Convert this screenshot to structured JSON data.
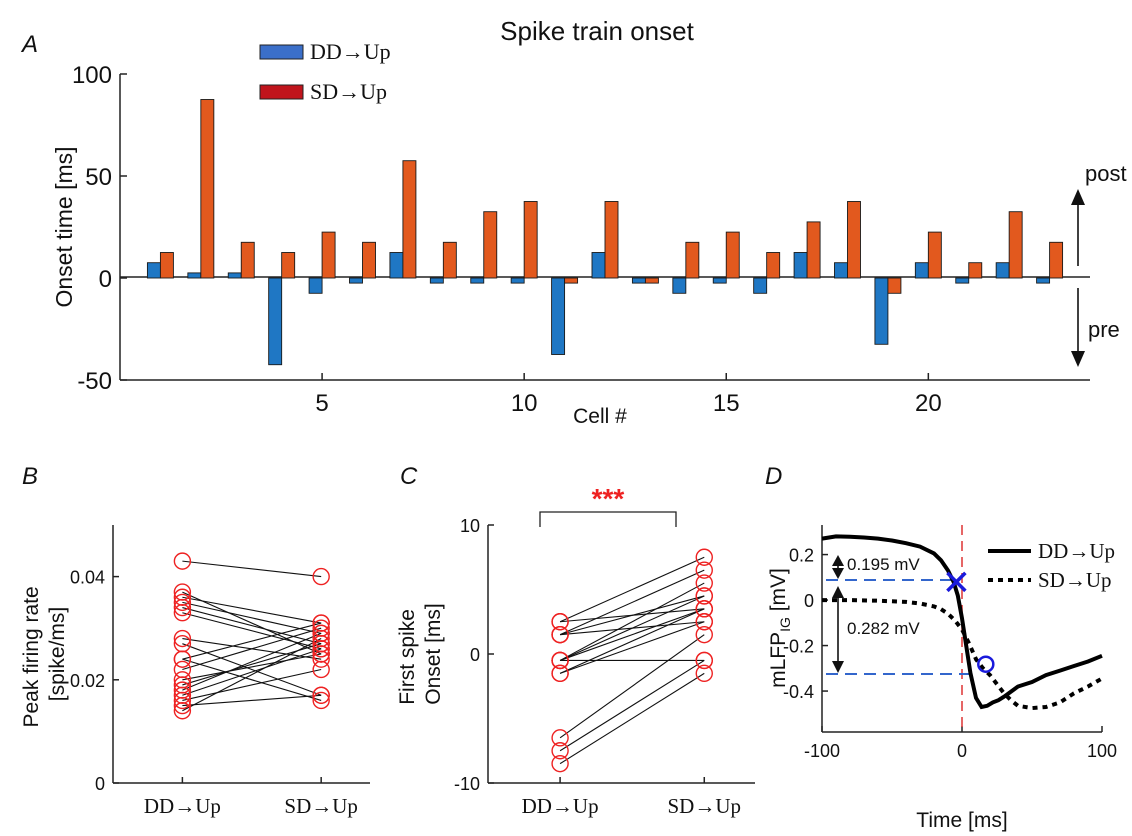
{
  "figure": {
    "title": "Spike train onset"
  },
  "colors": {
    "dd": "#1f77c4",
    "sd": "#e2591e",
    "marker": "#ee2222",
    "stars": "#ee2222",
    "dash": "#3366cc",
    "vline": "#dd3333",
    "xmark": "#1a1adb",
    "omark": "#1a1adb",
    "legend_dd": "#3b6fc9",
    "legend_sd": "#c0141c"
  },
  "panelA": {
    "label": "A",
    "legend": [
      "DD→Up",
      "SD→Up"
    ],
    "side_labels": {
      "post": "post",
      "pre": "pre"
    }
  },
  "panelB": {
    "label": "B"
  },
  "panelC": {
    "label": "C",
    "significance": "***"
  },
  "panelD": {
    "label": "D",
    "legend": [
      "DD→Up",
      "SD→Up"
    ],
    "annotations": [
      "0.195 mV",
      "0.282 mV"
    ]
  },
  "chart_data": [
    {
      "type": "bar",
      "title": "Spike train onset",
      "xlabel": "Cell #",
      "ylabel": "Onset time [ms]",
      "ylim": [
        -50,
        100
      ],
      "xlim": [
        0,
        24
      ],
      "xticks": [
        5,
        10,
        15,
        20
      ],
      "yticks": [
        -50,
        0,
        50,
        100
      ],
      "categories": [
        1,
        2,
        3,
        4,
        5,
        6,
        7,
        8,
        9,
        10,
        11,
        12,
        13,
        14,
        15,
        16,
        17,
        18,
        19,
        20,
        21,
        22,
        23
      ],
      "series": [
        {
          "name": "DD→Up",
          "values": [
            7.5,
            2.5,
            2.5,
            -42.5,
            -7.5,
            -2.5,
            12.5,
            -2.5,
            -2.5,
            -2.5,
            -37.5,
            12.5,
            -2.5,
            -7.5,
            -2.5,
            -7.5,
            12.5,
            7.5,
            -32.5,
            7.5,
            -2.5,
            7.5,
            -2.5
          ]
        },
        {
          "name": "SD→Up",
          "values": [
            12.5,
            87.5,
            17.5,
            12.5,
            22.5,
            17.5,
            57.5,
            17.5,
            32.5,
            37.5,
            -2.5,
            37.5,
            -2.5,
            17.5,
            22.5,
            12.5,
            27.5,
            37.5,
            -7.5,
            22.5,
            7.5,
            32.5,
            17.5
          ]
        }
      ]
    },
    {
      "type": "scatter",
      "ylabel": "Peak firing rate [spike/ms]",
      "categories": [
        "DD→Up",
        "SD→Up"
      ],
      "ylim": [
        0,
        0.05
      ],
      "yticks": [
        0,
        0.02,
        0.04
      ],
      "pairs": [
        [
          0.043,
          0.04
        ],
        [
          0.037,
          0.025
        ],
        [
          0.036,
          0.031
        ],
        [
          0.035,
          0.029
        ],
        [
          0.034,
          0.027
        ],
        [
          0.033,
          0.026
        ],
        [
          0.028,
          0.024
        ],
        [
          0.027,
          0.017
        ],
        [
          0.024,
          0.031
        ],
        [
          0.024,
          0.016
        ],
        [
          0.022,
          0.03
        ],
        [
          0.02,
          0.025
        ],
        [
          0.019,
          0.027
        ],
        [
          0.018,
          0.029
        ],
        [
          0.017,
          0.026
        ],
        [
          0.016,
          0.022
        ],
        [
          0.015,
          0.017
        ],
        [
          0.014,
          0.028
        ]
      ]
    },
    {
      "type": "scatter",
      "ylabel": "First spike Onset [ms]",
      "categories": [
        "DD→Up",
        "SD→Up"
      ],
      "ylim": [
        -10,
        10
      ],
      "yticks": [
        -10,
        0,
        10
      ],
      "pairs": [
        [
          2.5,
          7.5
        ],
        [
          2.5,
          3.5
        ],
        [
          1.5,
          6.5
        ],
        [
          1.5,
          2.5
        ],
        [
          1.5,
          4.5
        ],
        [
          -0.5,
          5.5
        ],
        [
          -0.5,
          4.5
        ],
        [
          -0.5,
          3.5
        ],
        [
          -0.5,
          -0.5
        ],
        [
          -1.5,
          2.5
        ],
        [
          -1.5,
          3.5
        ],
        [
          -6.5,
          1.5
        ],
        [
          -7.5,
          -0.5
        ],
        [
          -8.5,
          -1.5
        ]
      ]
    },
    {
      "type": "line",
      "xlabel": "Time [ms]",
      "ylabel": "mLFP_IG [mV]",
      "xlim": [
        -100,
        100
      ],
      "ylim": [
        -0.58,
        0.33
      ],
      "xticks": [
        -100,
        0,
        100
      ],
      "yticks": [
        -0.4,
        -0.2,
        0,
        0.2
      ],
      "series": [
        {
          "name": "DD→Up",
          "x": [
            -100,
            -90,
            -80,
            -70,
            -60,
            -50,
            -40,
            -30,
            -20,
            -15,
            -10,
            -6,
            -3,
            0,
            3,
            6,
            10,
            14,
            18,
            22,
            26,
            30,
            40,
            50,
            60,
            70,
            80,
            90,
            100
          ],
          "y": [
            0.27,
            0.28,
            0.278,
            0.275,
            0.27,
            0.262,
            0.25,
            0.235,
            0.205,
            0.175,
            0.13,
            0.08,
            0.02,
            -0.08,
            -0.2,
            -0.32,
            -0.43,
            -0.47,
            -0.465,
            -0.45,
            -0.44,
            -0.425,
            -0.38,
            -0.36,
            -0.33,
            -0.31,
            -0.29,
            -0.27,
            -0.245
          ]
        },
        {
          "name": "SD→Up",
          "x": [
            -100,
            -80,
            -60,
            -40,
            -30,
            -20,
            -15,
            -10,
            -5,
            0,
            5,
            10,
            15,
            20,
            25,
            30,
            35,
            40,
            50,
            60,
            70,
            80,
            90,
            100
          ],
          "y": [
            0.0,
            0.0,
            -0.003,
            -0.008,
            -0.015,
            -0.028,
            -0.04,
            -0.06,
            -0.09,
            -0.13,
            -0.19,
            -0.26,
            -0.3,
            -0.33,
            -0.37,
            -0.41,
            -0.44,
            -0.465,
            -0.475,
            -0.47,
            -0.45,
            -0.41,
            -0.38,
            -0.345
          ]
        }
      ],
      "markers": [
        {
          "name": "DD→Up",
          "shape": "x",
          "x": -4,
          "y": 0.08
        },
        {
          "name": "SD→Up",
          "shape": "circle",
          "x": 17,
          "y": -0.282
        }
      ]
    }
  ]
}
